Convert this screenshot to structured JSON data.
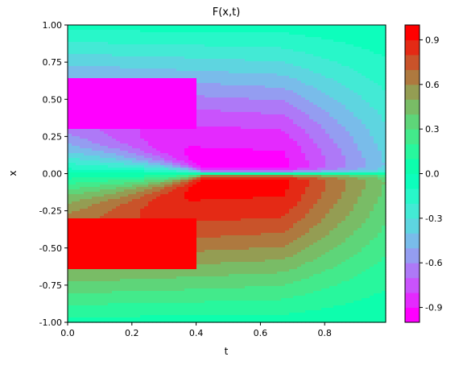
{
  "chart_data": {
    "type": "heatmap",
    "title": "F(x,t)",
    "xlabel": "t",
    "ylabel": "x",
    "xlim": [
      0,
      0.99
    ],
    "ylim": [
      -1.0,
      1.0
    ],
    "x_ticks": [
      "0.0",
      "0.2",
      "0.4",
      "0.6",
      "0.8"
    ],
    "x_tick_values": [
      0.0,
      0.2,
      0.4,
      0.6,
      0.8
    ],
    "y_ticks": [
      "-1.00",
      "-0.75",
      "-0.50",
      "-0.25",
      "0.00",
      "0.25",
      "0.50",
      "0.75",
      "1.00"
    ],
    "y_tick_values": [
      -1.0,
      -0.75,
      -0.5,
      -0.25,
      0.0,
      0.25,
      0.5,
      0.75,
      1.0
    ],
    "colorbar": {
      "range": [
        -1.0,
        1.0
      ],
      "levels": 20,
      "tick_labels": [
        "-0.9",
        "-0.6",
        "-0.3",
        "0.0",
        "0.3",
        "0.6",
        "0.9"
      ],
      "tick_values": [
        -0.9,
        -0.6,
        -0.3,
        0.0,
        0.3,
        0.6,
        0.9
      ],
      "colormap": "rainbow"
    },
    "grid": false
  }
}
